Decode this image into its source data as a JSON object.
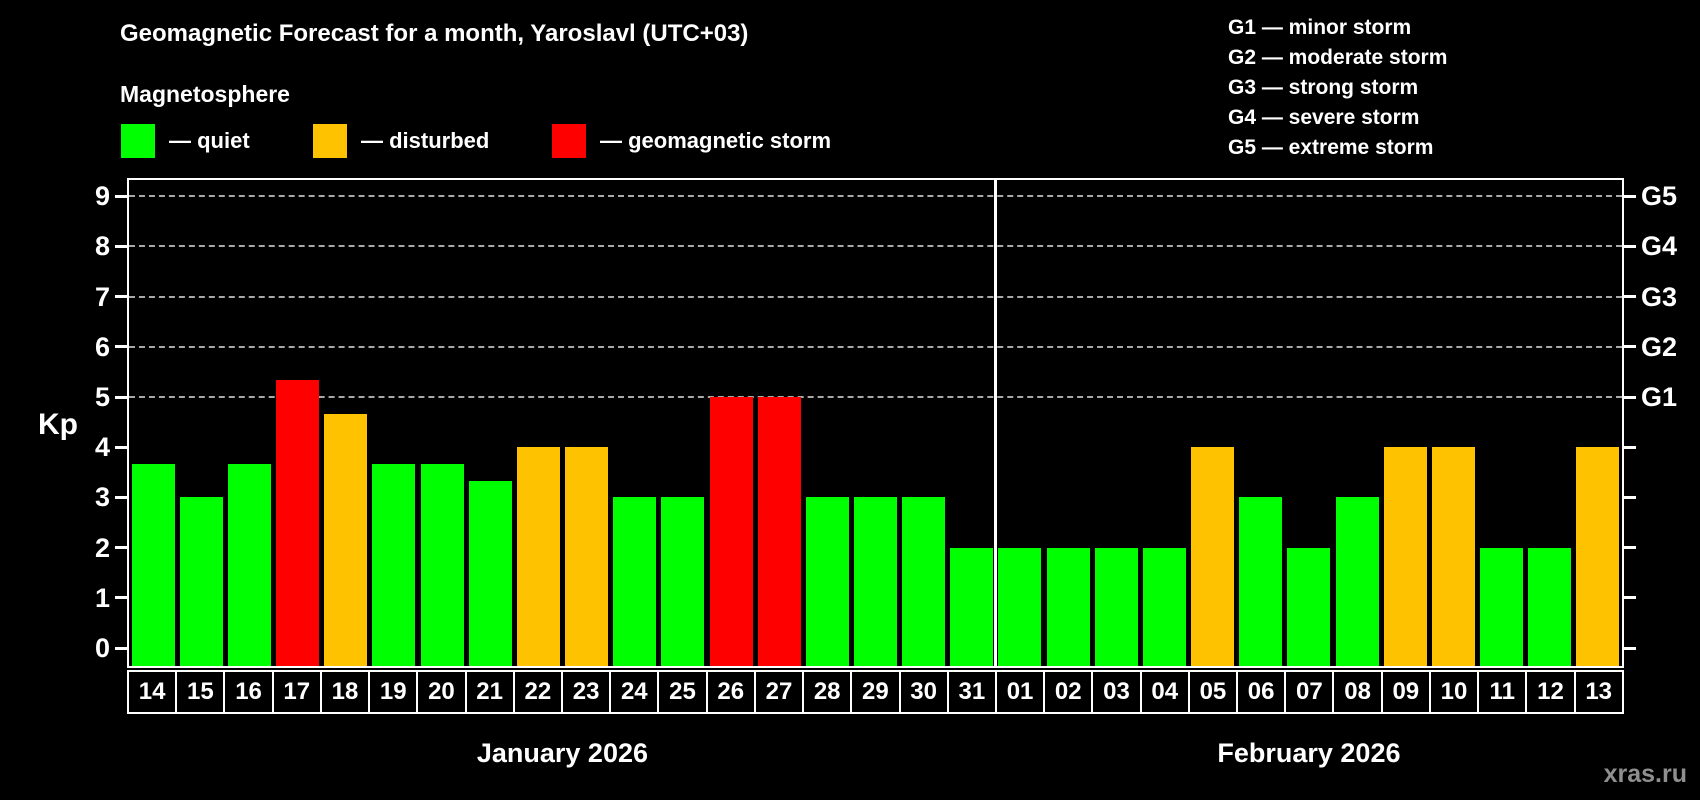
{
  "header": {
    "title": "Geomagnetic Forecast for a month, Yaroslavl (UTC+03)",
    "subtitle": "Magnetosphere"
  },
  "legend": {
    "quiet": {
      "label": "— quiet",
      "color": "#00ff00"
    },
    "disturbed": {
      "label": "— disturbed",
      "color": "#ffc200"
    },
    "storm": {
      "label": "— geomagnetic storm",
      "color": "#ff0000"
    }
  },
  "storm_scale_legend": {
    "items": [
      {
        "label": "G1 — minor storm"
      },
      {
        "label": "G2 — moderate storm"
      },
      {
        "label": "G3 — strong storm"
      },
      {
        "label": "G4 — severe storm"
      },
      {
        "label": "G5 — extreme storm"
      }
    ]
  },
  "watermark": "xras.ru",
  "chart_data": {
    "type": "bar",
    "title": "Geomagnetic Forecast for a month, Yaroslavl (UTC+03)",
    "ylabel": "Kp",
    "ylim": [
      0,
      9.4
    ],
    "yticks": [
      0,
      1,
      2,
      3,
      4,
      5,
      6,
      7,
      8,
      9
    ],
    "gridlines_at": [
      5,
      6,
      7,
      8,
      9
    ],
    "grid": "dashed",
    "right_axis": [
      {
        "value": 5,
        "label": "G1"
      },
      {
        "value": 6,
        "label": "G2"
      },
      {
        "value": 7,
        "label": "G3"
      },
      {
        "value": 8,
        "label": "G4"
      },
      {
        "value": 9,
        "label": "G5"
      }
    ],
    "level_colors": {
      "quiet": "#00ff00",
      "disturbed": "#ffc200",
      "storm": "#ff0000"
    },
    "months": [
      {
        "label": "January 2026",
        "days": [
          {
            "day": "14",
            "kp": 3.67,
            "level": "quiet"
          },
          {
            "day": "15",
            "kp": 3.0,
            "level": "quiet"
          },
          {
            "day": "16",
            "kp": 3.67,
            "level": "quiet"
          },
          {
            "day": "17",
            "kp": 5.33,
            "level": "storm"
          },
          {
            "day": "18",
            "kp": 4.67,
            "level": "disturbed"
          },
          {
            "day": "19",
            "kp": 3.67,
            "level": "quiet"
          },
          {
            "day": "20",
            "kp": 3.67,
            "level": "quiet"
          },
          {
            "day": "21",
            "kp": 3.33,
            "level": "quiet"
          },
          {
            "day": "22",
            "kp": 4.0,
            "level": "disturbed"
          },
          {
            "day": "23",
            "kp": 4.0,
            "level": "disturbed"
          },
          {
            "day": "24",
            "kp": 3.0,
            "level": "quiet"
          },
          {
            "day": "25",
            "kp": 3.0,
            "level": "quiet"
          },
          {
            "day": "26",
            "kp": 5.0,
            "level": "storm"
          },
          {
            "day": "27",
            "kp": 5.0,
            "level": "storm"
          },
          {
            "day": "28",
            "kp": 3.0,
            "level": "quiet"
          },
          {
            "day": "29",
            "kp": 3.0,
            "level": "quiet"
          },
          {
            "day": "30",
            "kp": 3.0,
            "level": "quiet"
          },
          {
            "day": "31",
            "kp": 2.0,
            "level": "quiet"
          }
        ]
      },
      {
        "label": "February 2026",
        "days": [
          {
            "day": "01",
            "kp": 2.0,
            "level": "quiet"
          },
          {
            "day": "02",
            "kp": 2.0,
            "level": "quiet"
          },
          {
            "day": "03",
            "kp": 2.0,
            "level": "quiet"
          },
          {
            "day": "04",
            "kp": 2.0,
            "level": "quiet"
          },
          {
            "day": "05",
            "kp": 4.0,
            "level": "disturbed"
          },
          {
            "day": "06",
            "kp": 3.0,
            "level": "quiet"
          },
          {
            "day": "07",
            "kp": 2.0,
            "level": "quiet"
          },
          {
            "day": "08",
            "kp": 3.0,
            "level": "quiet"
          },
          {
            "day": "09",
            "kp": 4.0,
            "level": "disturbed"
          },
          {
            "day": "10",
            "kp": 4.0,
            "level": "disturbed"
          },
          {
            "day": "11",
            "kp": 2.0,
            "level": "quiet"
          },
          {
            "day": "12",
            "kp": 2.0,
            "level": "quiet"
          },
          {
            "day": "13",
            "kp": 4.0,
            "level": "disturbed"
          }
        ]
      }
    ]
  }
}
